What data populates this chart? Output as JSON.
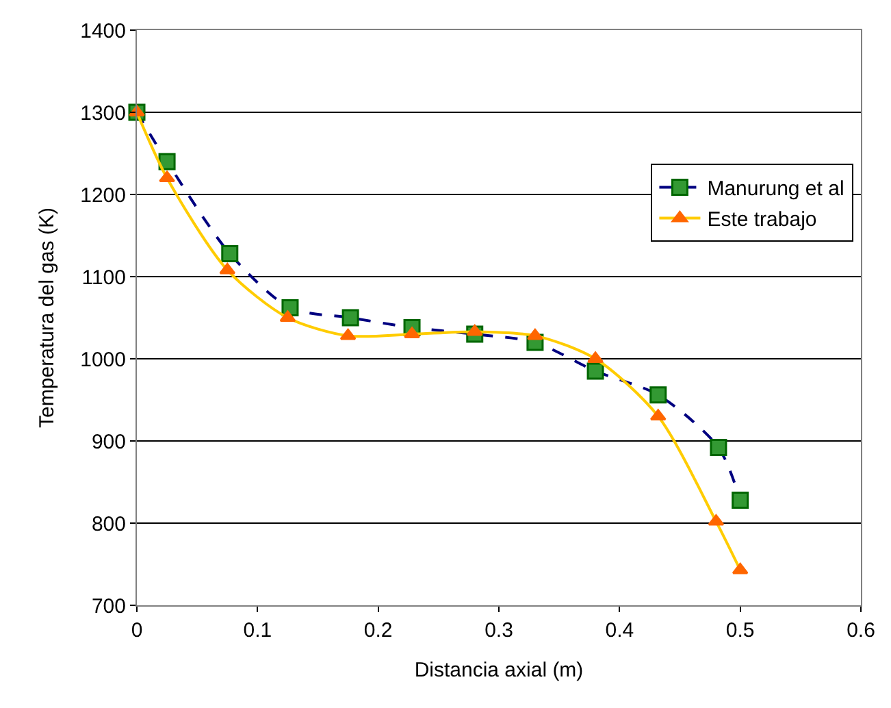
{
  "chart_data": {
    "type": "line",
    "xlabel": "Distancia axial (m)",
    "ylabel": "Temperatura del gas (K)",
    "xlim": [
      0,
      0.6
    ],
    "xticks": [
      0,
      0.1,
      0.2,
      0.3,
      0.4,
      0.5,
      0.6
    ],
    "ylim": [
      700,
      1400
    ],
    "yticks": [
      700,
      800,
      900,
      1000,
      1100,
      1200,
      1300,
      1400
    ],
    "grid": "y",
    "legend": "right",
    "series": [
      {
        "name": "Manurung et al",
        "color": "#000080",
        "marker": "square",
        "line_style": "dashed",
        "x": [
          0,
          0.025,
          0.077,
          0.127,
          0.177,
          0.228,
          0.28,
          0.33,
          0.38,
          0.432,
          0.482,
          0.5
        ],
        "values": [
          1300,
          1240,
          1128,
          1062,
          1050,
          1038,
          1030,
          1020,
          985,
          956,
          892,
          828
        ]
      },
      {
        "name": "Este trabajo",
        "color": "#ffcc00",
        "marker": "triangle",
        "line_style": "solid",
        "x": [
          0,
          0.025,
          0.075,
          0.125,
          0.175,
          0.228,
          0.28,
          0.33,
          0.38,
          0.432,
          0.48,
          0.5
        ],
        "values": [
          1300,
          1220,
          1108,
          1050,
          1028,
          1030,
          1033,
          1028,
          1000,
          930,
          802,
          743
        ]
      }
    ]
  }
}
